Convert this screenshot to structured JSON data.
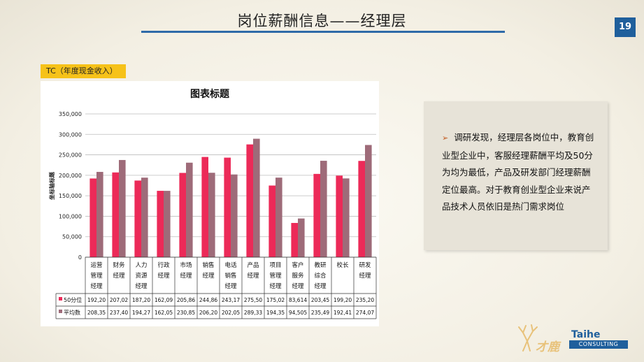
{
  "header": {
    "title": "岗位薪酬信息——经理层",
    "page_number": "19"
  },
  "section_label": "TC（年度现金收入）",
  "chart_data": {
    "type": "bar",
    "title": "图表标题",
    "ylabel": "坐标轴标题",
    "ylim": [
      0,
      350000
    ],
    "yticks": [
      "0",
      "50,000",
      "100,000",
      "150,000",
      "200,000",
      "250,000",
      "300,000",
      "350,000"
    ],
    "categories": [
      [
        "运营",
        "管理",
        "经理"
      ],
      [
        "财务",
        "经理"
      ],
      [
        "人力",
        "资源",
        "经理"
      ],
      [
        "行政",
        "经理"
      ],
      [
        "市场",
        "经理"
      ],
      [
        "销售",
        "经理"
      ],
      [
        "电话",
        "销售",
        "经理"
      ],
      [
        "产品",
        "经理"
      ],
      [
        "项目",
        "管理",
        "经理"
      ],
      [
        "客户",
        "服务",
        "经理"
      ],
      [
        "教研",
        "综合",
        "经理"
      ],
      [
        "校长"
      ],
      [
        "研发",
        "经理"
      ]
    ],
    "series": [
      {
        "name": "50分位",
        "color": "#ec2a58",
        "values": [
          192200,
          207020,
          187200,
          162090,
          205860,
          244860,
          243170,
          275500,
          175020,
          83614,
          203450,
          199200,
          235200
        ],
        "labels": [
          "192,20",
          "207,02",
          "187,20",
          "162,09",
          "205,86",
          "244,86",
          "243,17",
          "275,50",
          "175,02",
          "83,614",
          "203,45",
          "199,20",
          "235,20"
        ]
      },
      {
        "name": "平均数",
        "color": "#9e6b79",
        "values": [
          208350,
          237400,
          194270,
          162050,
          230850,
          206200,
          202050,
          289330,
          194350,
          94505,
          235490,
          192410,
          274070
        ],
        "labels": [
          "208,35",
          "237,40",
          "194,27",
          "162,05",
          "230,85",
          "206,20",
          "202,05",
          "289,33",
          "194,35",
          "94,505",
          "235,49",
          "192,41",
          "274,07"
        ]
      }
    ],
    "grid": true,
    "legend": "table-below"
  },
  "note": {
    "text": "调研发现，经理层各岗位中，教育创业型企业中，客服经理薪酬平均及50分为均为最低，产品及研发部门经理薪酬定位最高。对于教育创业型企业来说产品技术人员依旧是热门需求岗位"
  },
  "logos": {
    "brand_cn": "才鹿",
    "brand_en": "Taihe",
    "brand_en_sub": "CONSULTING"
  }
}
